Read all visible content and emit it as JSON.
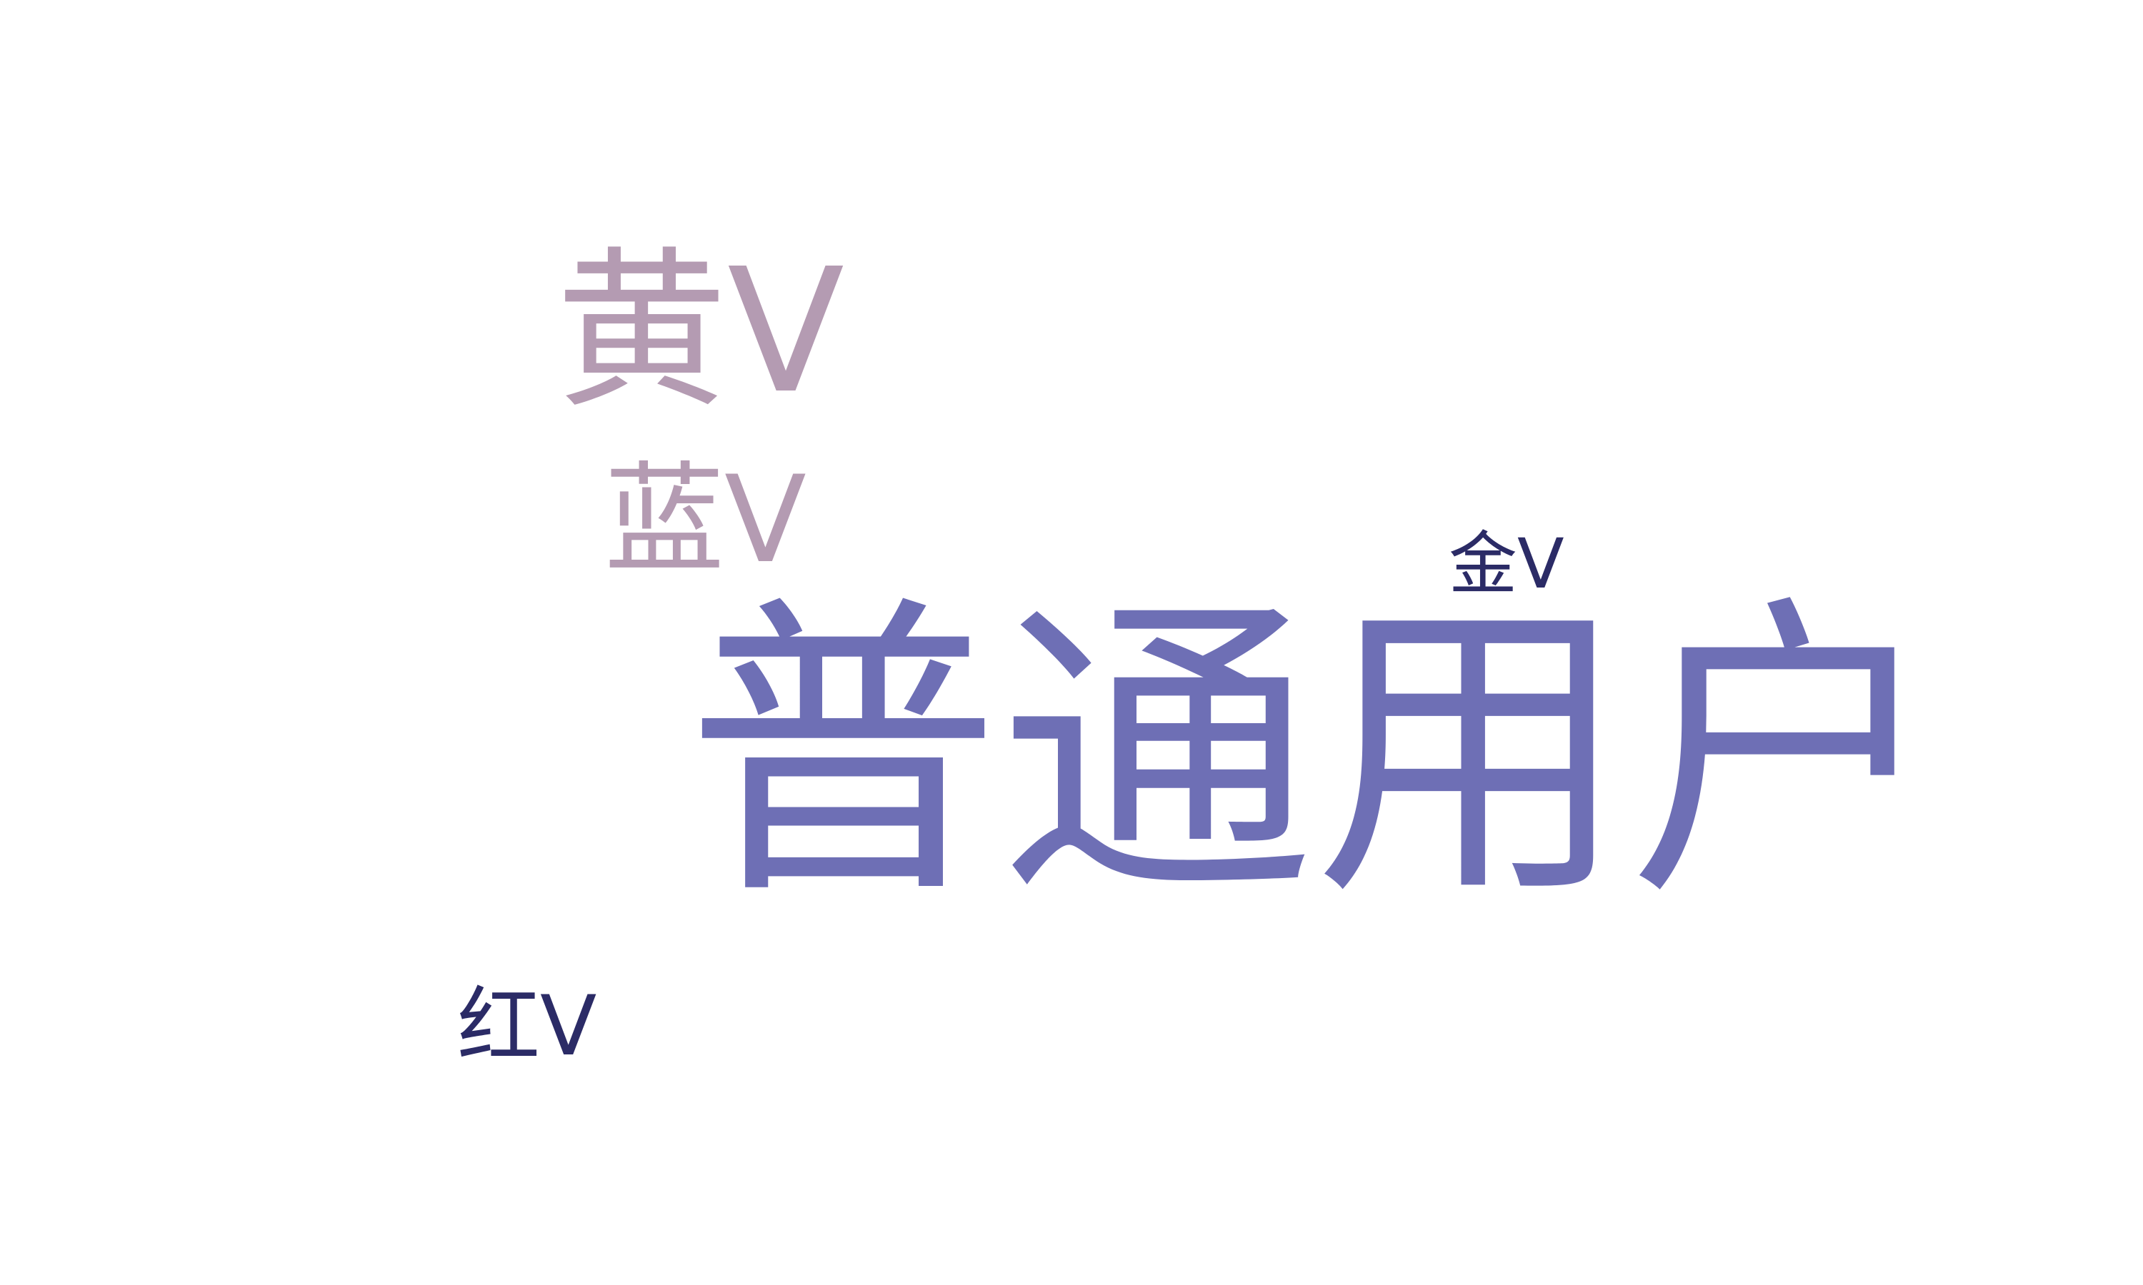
{
  "cloud": {
    "words": [
      {
        "id": "huang",
        "text": "黄V",
        "color": "#b49bb2"
      },
      {
        "id": "lan",
        "text": "蓝V",
        "color": "#b49bb2"
      },
      {
        "id": "jin",
        "text": "金V",
        "color": "#2b2b66"
      },
      {
        "id": "main",
        "text": "普通用户",
        "color": "#6e6fb5"
      },
      {
        "id": "hong",
        "text": "红V",
        "color": "#2b2b66"
      }
    ]
  }
}
